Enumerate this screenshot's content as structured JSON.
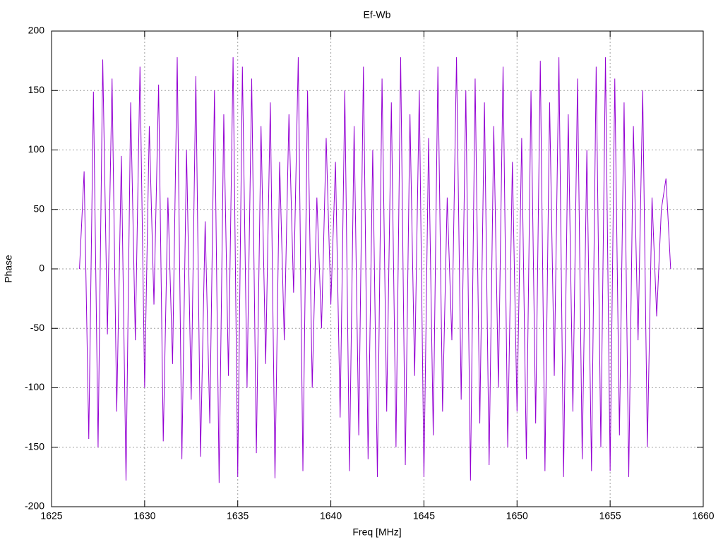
{
  "chart_data": {
    "type": "line",
    "title": "Ef-Wb",
    "x_label": "Freq [MHz]",
    "y_label": "Phase",
    "color": "#9400d3",
    "grid": true,
    "xlim": [
      1625,
      1660
    ],
    "xticks": [
      1625,
      1630,
      1635,
      1640,
      1645,
      1650,
      1655,
      1660
    ],
    "ylim": [
      -200,
      200
    ],
    "yticks": [
      -200,
      -150,
      -100,
      -50,
      0,
      50,
      100,
      150,
      200
    ],
    "x": [
      1626.5,
      1626.75,
      1627,
      1627.25,
      1627.5,
      1627.75,
      1628,
      1628.25,
      1628.5,
      1628.75,
      1629,
      1629.25,
      1629.5,
      1629.75,
      1630,
      1630.25,
      1630.5,
      1630.75,
      1631,
      1631.25,
      1631.5,
      1631.75,
      1632,
      1632.25,
      1632.5,
      1632.75,
      1633,
      1633.25,
      1633.5,
      1633.75,
      1634,
      1634.25,
      1634.5,
      1634.75,
      1635,
      1635.25,
      1635.5,
      1635.75,
      1636,
      1636.25,
      1636.5,
      1636.75,
      1637,
      1637.25,
      1637.5,
      1637.75,
      1638,
      1638.25,
      1638.5,
      1638.75,
      1639,
      1639.25,
      1639.5,
      1639.75,
      1640,
      1640.25,
      1640.5,
      1640.75,
      1641,
      1641.25,
      1641.5,
      1641.75,
      1642,
      1642.25,
      1642.5,
      1642.75,
      1643,
      1643.25,
      1643.5,
      1643.75,
      1644,
      1644.25,
      1644.5,
      1644.75,
      1645,
      1645.25,
      1645.5,
      1645.75,
      1646,
      1646.25,
      1646.5,
      1646.75,
      1647,
      1647.25,
      1647.5,
      1647.75,
      1648,
      1648.25,
      1648.5,
      1648.75,
      1649,
      1649.25,
      1649.5,
      1649.75,
      1650,
      1650.25,
      1650.5,
      1650.75,
      1651,
      1651.25,
      1651.5,
      1651.75,
      1652,
      1652.25,
      1652.5,
      1652.75,
      1653,
      1653.25,
      1653.5,
      1653.75,
      1654,
      1654.25,
      1654.5,
      1654.75,
      1655,
      1655.25,
      1655.5,
      1655.75,
      1656,
      1656.25,
      1656.5,
      1656.75,
      1657,
      1657.25,
      1657.5,
      1657.75,
      1658,
      1658.25
    ],
    "values": [
      0,
      82,
      -143,
      149,
      -150,
      176,
      -55,
      160,
      -120,
      95,
      -178,
      140,
      -60,
      170,
      -100,
      120,
      -30,
      155,
      -145,
      60,
      -80,
      178,
      -160,
      100,
      -110,
      162,
      -158,
      40,
      -130,
      150,
      -180,
      130,
      -90,
      178,
      -175,
      170,
      -100,
      160,
      -155,
      120,
      -80,
      140,
      -176,
      90,
      -60,
      130,
      -20,
      178,
      -170,
      150,
      -100,
      60,
      -50,
      110,
      -30,
      90,
      -125,
      150,
      -170,
      120,
      -140,
      170,
      -160,
      100,
      -175,
      160,
      -120,
      140,
      -150,
      178,
      -165,
      130,
      -90,
      150,
      -175,
      110,
      -140,
      170,
      -120,
      60,
      -60,
      178,
      -110,
      150,
      -178,
      160,
      -130,
      140,
      -165,
      120,
      -100,
      170,
      -150,
      90,
      -120,
      110,
      -160,
      150,
      -130,
      175,
      -170,
      140,
      -90,
      178,
      -175,
      130,
      -120,
      160,
      -160,
      100,
      -170,
      170,
      -150,
      178,
      -170,
      160,
      -140,
      140,
      -175,
      120,
      -60,
      150,
      -150,
      60,
      -40,
      50,
      76,
      0
    ]
  }
}
